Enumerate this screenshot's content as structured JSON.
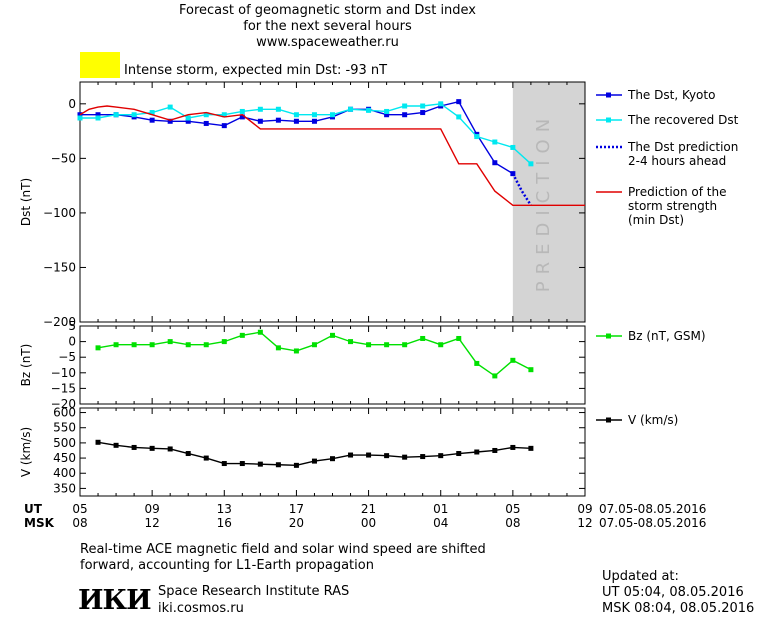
{
  "header": {
    "title_lines": [
      "Forecast of geomagnetic storm and Dst index",
      "for the next several hours",
      "www.spaceweather.ru"
    ],
    "storm_status": "Intense storm, expected min Dst: -93 nT",
    "storm_color": "#ffff00"
  },
  "chart_data": [
    {
      "type": "line",
      "ylabel": "Dst (nT)",
      "ylim": [
        -200,
        20
      ],
      "yticks": [
        0,
        -50,
        -100,
        -150,
        -200
      ],
      "prediction_label": "PREDICTION",
      "x_range": [
        5,
        33
      ],
      "prediction_window": [
        5,
        8
      ],
      "series": [
        {
          "name": "The Dst, Kyoto",
          "color": "#0000e0",
          "x": [
            5,
            6,
            7,
            8,
            9,
            10,
            11,
            12,
            13,
            14,
            15,
            16,
            17,
            18,
            19,
            20,
            21,
            22,
            23,
            24,
            25,
            26,
            27,
            28,
            29
          ],
          "y": [
            -10,
            -10,
            -10,
            -12,
            -15,
            -16,
            -16,
            -18,
            -20,
            -12,
            -16,
            -15,
            -16,
            -16,
            -12,
            -5,
            -5,
            -10,
            -10,
            -8,
            -2,
            2,
            -28,
            -54,
            -64
          ]
        },
        {
          "name": "The recovered Dst",
          "color": "#00e8f0",
          "x": [
            5,
            6,
            7,
            8,
            9,
            10,
            11,
            12,
            13,
            14,
            15,
            16,
            17,
            18,
            19,
            20,
            21,
            22,
            23,
            24,
            25,
            26,
            27,
            28,
            29,
            30
          ],
          "y": [
            -13,
            -13,
            -10,
            -10,
            -8,
            -3,
            -13,
            -10,
            -10,
            -7,
            -5,
            -5,
            -10,
            -10,
            -10,
            -5,
            -6,
            -7,
            -2,
            -2,
            0,
            -12,
            -30,
            -35,
            -40,
            -55
          ]
        },
        {
          "name": "The Dst prediction",
          "name2": "2-4 hours ahead",
          "color": "#0000e0",
          "dashed": true,
          "x": [
            29,
            29.5,
            30
          ],
          "y": [
            -64,
            -80,
            -93
          ]
        },
        {
          "name": "Prediction of the",
          "name2": "storm strength",
          "name3": "(min Dst)",
          "color": "#e00000",
          "step": true,
          "x": [
            5,
            5.5,
            6,
            6.5,
            7,
            8,
            9,
            10,
            11,
            12,
            13,
            14,
            15,
            20,
            25,
            26,
            27,
            28,
            29,
            30,
            31,
            32,
            33
          ],
          "y": [
            -10,
            -5,
            -3,
            -2,
            -3,
            -5,
            -10,
            -15,
            -10,
            -8,
            -12,
            -10,
            -23,
            -23,
            -23,
            -55,
            -55,
            -80,
            -93,
            -93,
            -93,
            -93,
            -93
          ]
        }
      ]
    },
    {
      "type": "line",
      "ylabel": "Bz (nT)",
      "ylim": [
        -20,
        5
      ],
      "yticks": [
        5,
        0,
        -5,
        -10,
        -15,
        -20
      ],
      "series": [
        {
          "name": "Bz (nT, GSM)",
          "color": "#00e000",
          "x": [
            6,
            7,
            8,
            9,
            10,
            11,
            12,
            13,
            14,
            15,
            16,
            17,
            18,
            19,
            20,
            21,
            22,
            23,
            24,
            25,
            26,
            27,
            28,
            29,
            30
          ],
          "y": [
            -2,
            -1,
            -1,
            -1,
            0,
            -1,
            -1,
            0,
            2,
            3,
            -2,
            -3,
            -1,
            2,
            0,
            -1,
            -1,
            -1,
            1,
            -1,
            1,
            -7,
            -11,
            -6,
            -9
          ]
        }
      ]
    },
    {
      "type": "line",
      "ylabel": "V (km/s)",
      "ylim": [
        325,
        615
      ],
      "yticks": [
        600,
        550,
        500,
        450,
        400,
        350
      ],
      "series": [
        {
          "name": "V (km/s)",
          "color": "#000000",
          "x": [
            6,
            7,
            8,
            9,
            10,
            11,
            12,
            13,
            14,
            15,
            16,
            17,
            18,
            19,
            20,
            21,
            22,
            23,
            24,
            25,
            26,
            27,
            28,
            29,
            30
          ],
          "y": [
            502,
            492,
            485,
            482,
            480,
            465,
            450,
            432,
            432,
            430,
            428,
            426,
            440,
            448,
            460,
            460,
            458,
            453,
            455,
            458,
            465,
            470,
            475,
            485,
            482
          ]
        }
      ]
    }
  ],
  "xaxis": {
    "ut_label": "UT",
    "msk_label": "MSK",
    "ut_ticks": [
      "05",
      "09",
      "13",
      "17",
      "21",
      "01",
      "05",
      "09"
    ],
    "msk_ticks": [
      "08",
      "12",
      "16",
      "20",
      "00",
      "04",
      "08",
      "12"
    ],
    "ut_date_range": "07.05-08.05.2016",
    "msk_date_range": "07.05-08.05.2016"
  },
  "footer": {
    "note_line1": "Real-time ACE magnetic field and solar wind speed are shifted",
    "note_line2": "forward, accounting for L1-Earth propagation",
    "institute_logo": "ИКИ",
    "institute_name": "Space Research Institute RAS",
    "institute_url": "iki.cosmos.ru",
    "updated_label": "Updated at:",
    "updated_ut": "UT   05:04, 08.05.2016",
    "updated_msk": "MSK 08:04, 08.05.2016"
  }
}
